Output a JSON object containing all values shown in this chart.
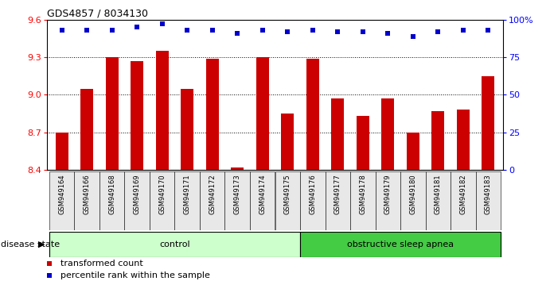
{
  "title": "GDS4857 / 8034130",
  "categories": [
    "GSM949164",
    "GSM949166",
    "GSM949168",
    "GSM949169",
    "GSM949170",
    "GSM949171",
    "GSM949172",
    "GSM949173",
    "GSM949174",
    "GSM949175",
    "GSM949176",
    "GSM949177",
    "GSM949178",
    "GSM949179",
    "GSM949180",
    "GSM949181",
    "GSM949182",
    "GSM949183"
  ],
  "bar_values": [
    8.7,
    9.05,
    9.3,
    9.27,
    9.35,
    9.05,
    9.29,
    8.42,
    9.3,
    8.85,
    9.29,
    8.97,
    8.83,
    8.97,
    8.7,
    8.87,
    8.88,
    9.15
  ],
  "percentile_values": [
    93,
    93,
    93,
    95,
    97,
    93,
    93,
    91,
    93,
    92,
    93,
    92,
    92,
    91,
    89,
    92,
    93,
    93
  ],
  "ylim_left": [
    8.4,
    9.6
  ],
  "ylim_right": [
    0,
    100
  ],
  "yticks_left": [
    8.4,
    8.7,
    9.0,
    9.3,
    9.6
  ],
  "yticks_right": [
    0,
    25,
    50,
    75,
    100
  ],
  "bar_color": "#cc0000",
  "dot_color": "#0000cc",
  "control_count": 10,
  "control_label": "control",
  "osa_label": "obstructive sleep apnea",
  "control_bg": "#ccffcc",
  "osa_bg": "#44cc44",
  "disease_state_label": "disease state",
  "legend_bar_label": "transformed count",
  "legend_dot_label": "percentile rank within the sample",
  "title_fontsize": 9,
  "tick_fontsize": 6,
  "label_fontsize": 7
}
